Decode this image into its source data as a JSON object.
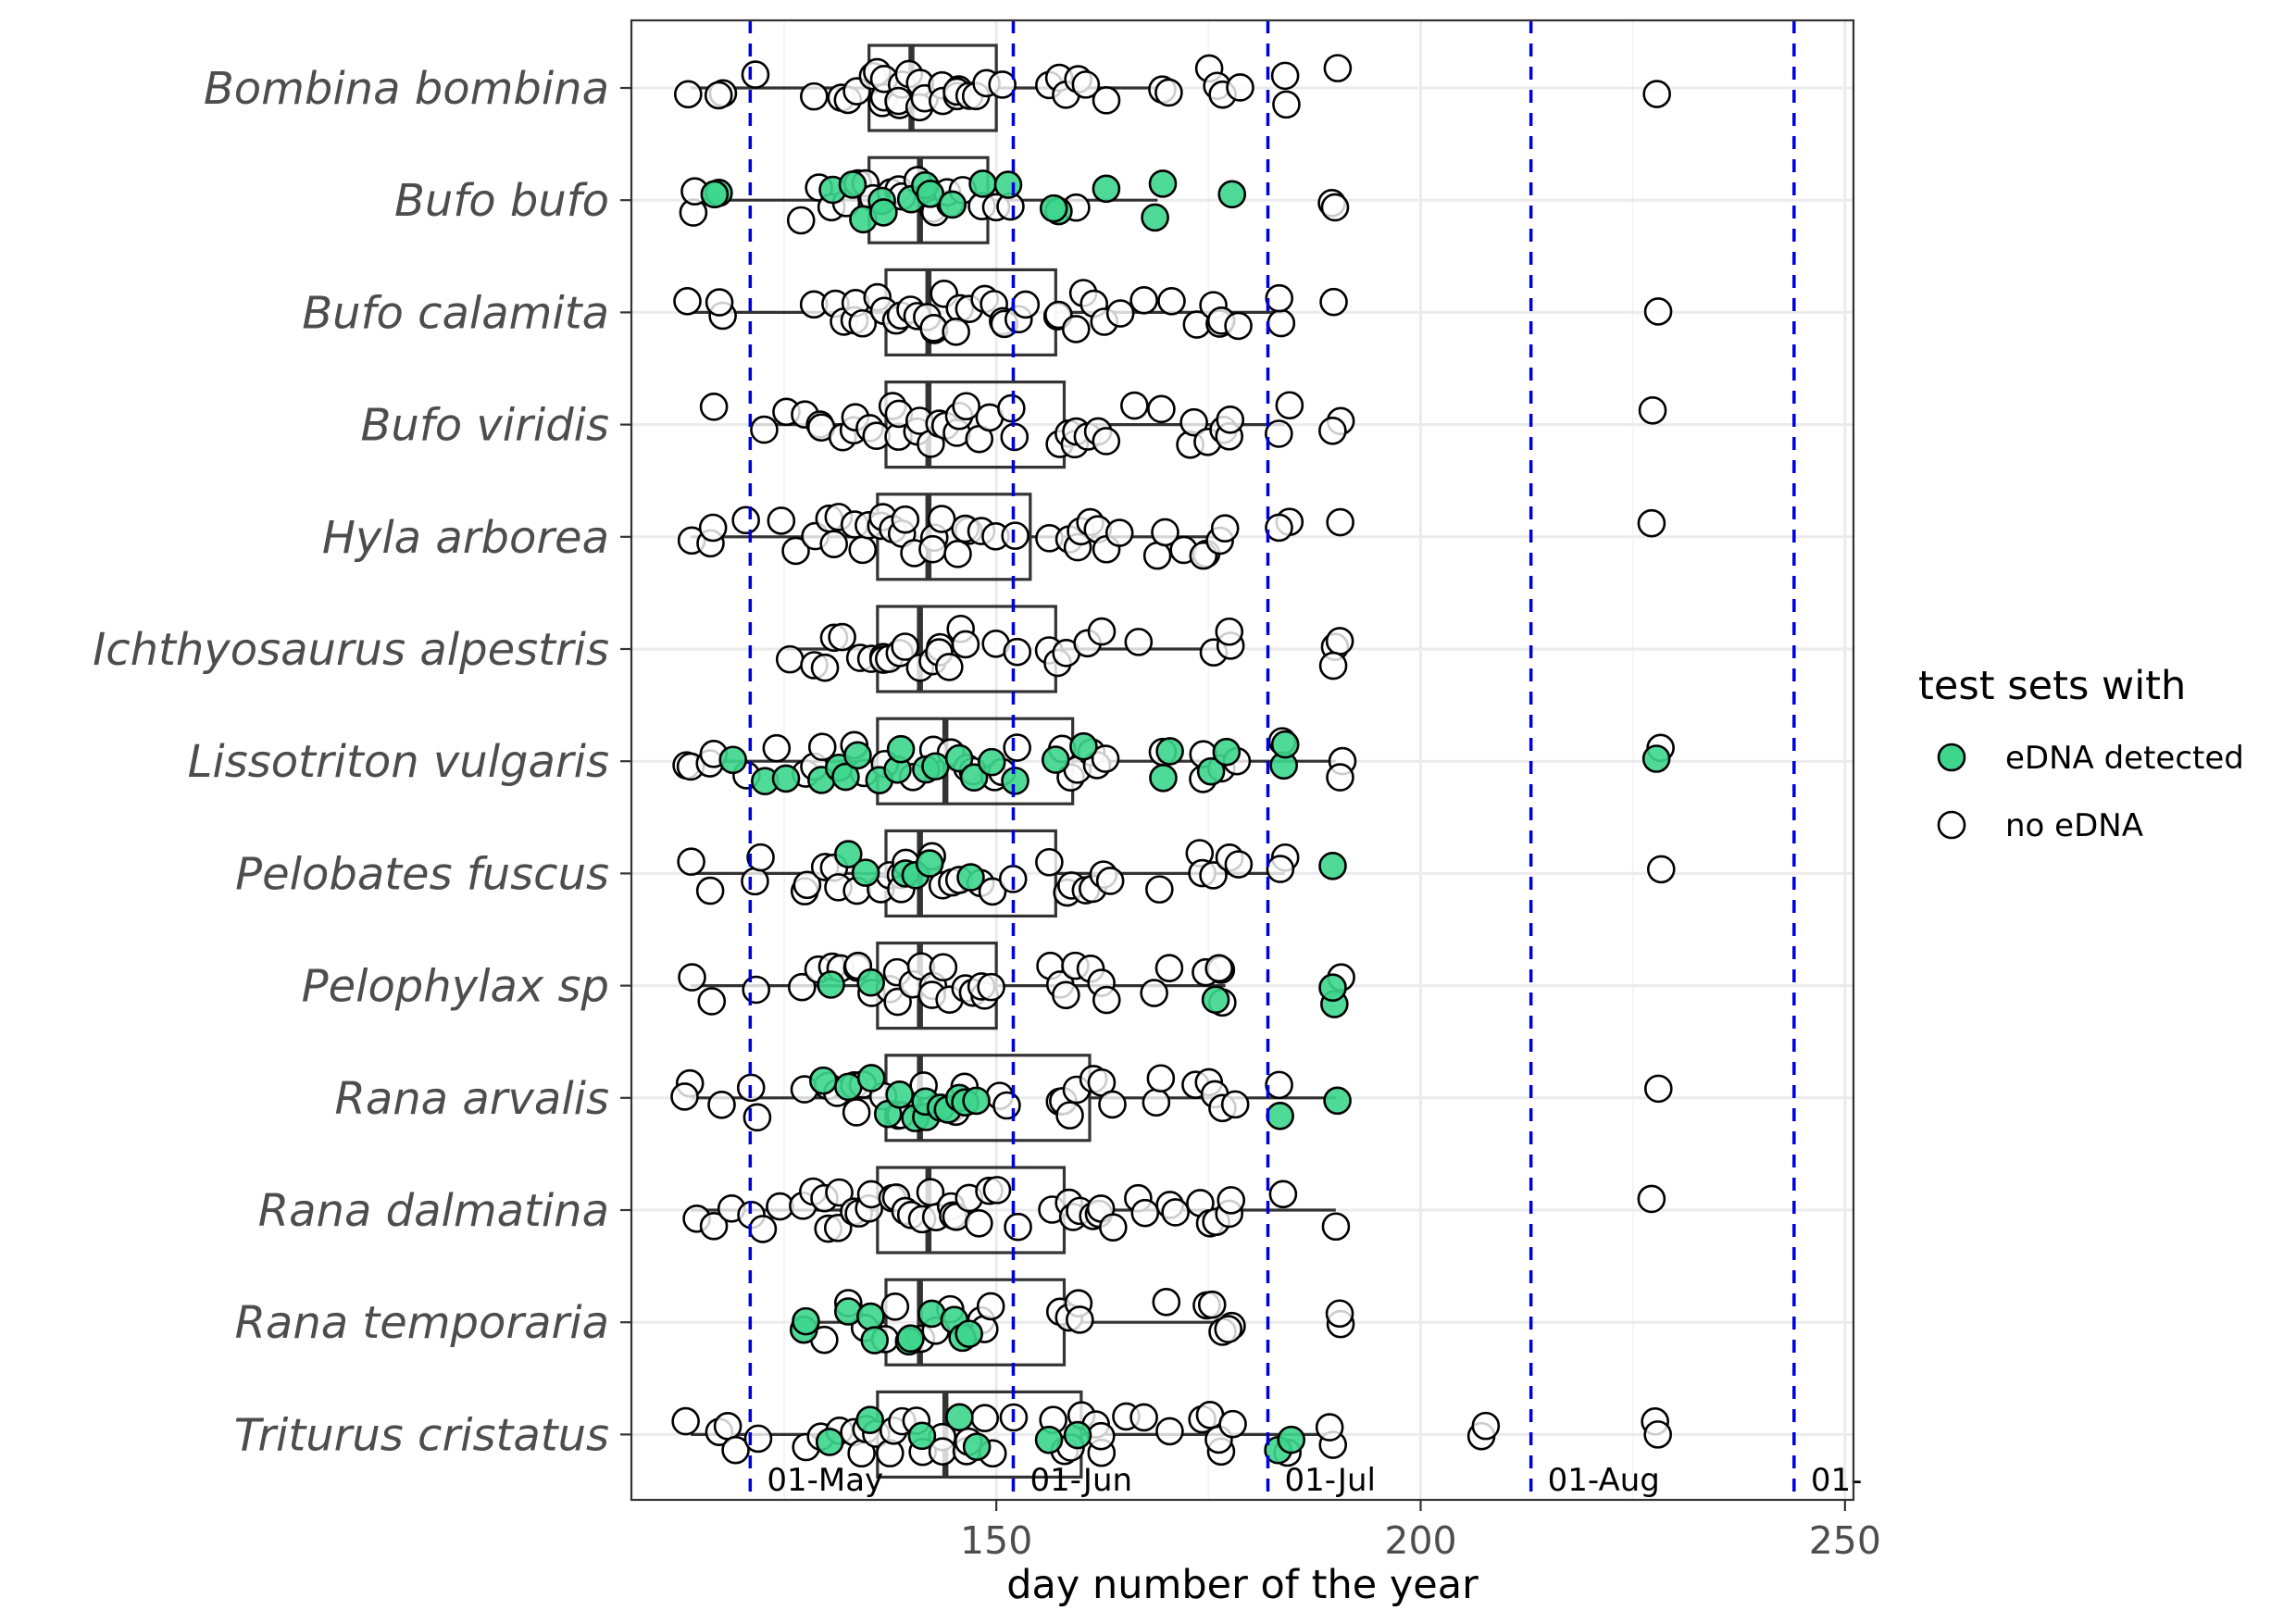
{
  "chart_data": {
    "type": "boxplot",
    "xlabel": "day number of the year",
    "ylabel": "",
    "xlim": [
      107,
      251
    ],
    "x_ticks": [
      150,
      200,
      250
    ],
    "x_minor_ticks": [
      125,
      175,
      225
    ],
    "grid": true,
    "legend": {
      "title": "test sets with",
      "placement": "right",
      "entries": [
        {
          "label": "eDNA detected",
          "color": "#3dd68c"
        },
        {
          "label": "no eDNA",
          "color": "#ffffff"
        }
      ]
    },
    "reference_lines": [
      {
        "x": 121,
        "label": "01-May"
      },
      {
        "x": 152,
        "label": "01-Jun"
      },
      {
        "x": 182,
        "label": "01-Jul"
      },
      {
        "x": 213,
        "label": "01-Aug"
      },
      {
        "x": 244,
        "label": "01-"
      }
    ],
    "categories": [
      "Bombina bombina",
      "Bufo bufo",
      "Bufo calamita",
      "Bufo viridis",
      "Hyla arborea",
      "Ichthyosaurus alpestris",
      "Lissotriton vulgaris",
      "Pelobates fuscus",
      "Pelophylax sp",
      "Rana arvalis",
      "Rana dalmatina",
      "Rana temporaria",
      "Triturus cristatus"
    ],
    "boxes": [
      {
        "whisker_low": 114,
        "q1": 135,
        "median": 140,
        "q3": 150,
        "whisker_high": 170
      },
      {
        "whisker_low": 116,
        "q1": 135,
        "median": 141,
        "q3": 149,
        "whisker_high": 169
      },
      {
        "whisker_low": 114,
        "q1": 137,
        "median": 142,
        "q3": 157,
        "whisker_high": 184
      },
      {
        "whisker_low": 121,
        "q1": 137,
        "median": 142,
        "q3": 158,
        "whisker_high": 184
      },
      {
        "whisker_low": 114,
        "q1": 136,
        "median": 142,
        "q3": 154,
        "whisker_high": 177
      },
      {
        "whisker_low": 125,
        "q1": 136,
        "median": 141,
        "q3": 157,
        "whisker_high": 177
      },
      {
        "whisker_low": 114,
        "q1": 136,
        "median": 144,
        "q3": 159,
        "whisker_high": 190
      },
      {
        "whisker_low": 114,
        "q1": 137,
        "median": 141,
        "q3": 157,
        "whisker_high": 184
      },
      {
        "whisker_low": 114,
        "q1": 136,
        "median": 141,
        "q3": 150,
        "whisker_high": 177
      },
      {
        "whisker_low": 114,
        "q1": 137,
        "median": 141,
        "q3": 161,
        "whisker_high": 190
      },
      {
        "whisker_low": 114,
        "q1": 136,
        "median": 142,
        "q3": 158,
        "whisker_high": 190
      },
      {
        "whisker_low": 127,
        "q1": 137,
        "median": 141,
        "q3": 158,
        "whisker_high": 177
      },
      {
        "whisker_low": 114,
        "q1": 136,
        "median": 144,
        "q3": 160,
        "whisker_high": 190
      }
    ],
    "points": [
      {
        "detected": [],
        "none": [
          114,
          117,
          117,
          121,
          128,
          132,
          133,
          134,
          135,
          136,
          136,
          137,
          137,
          138,
          139,
          139,
          140,
          141,
          141,
          142,
          143,
          144,
          145,
          146,
          146,
          147,
          148,
          149,
          150,
          157,
          158,
          159,
          160,
          161,
          163,
          169,
          170,
          175,
          176,
          177,
          178,
          184,
          184,
          190,
          228
        ]
      },
      {
        "detected": [
          117,
          117,
          131,
          133,
          134,
          136,
          137,
          140,
          141,
          143,
          145,
          149,
          152,
          157,
          157,
          163,
          169,
          169,
          177
        ],
        "none": [
          114,
          114,
          127,
          129,
          130,
          132,
          133,
          135,
          135,
          137,
          138,
          139,
          141,
          142,
          142,
          144,
          145,
          146,
          148,
          150,
          151,
          160,
          190,
          190
        ]
      },
      {
        "detected": [],
        "none": [
          114,
          117,
          117,
          128,
          131,
          132,
          133,
          134,
          135,
          136,
          137,
          138,
          139,
          140,
          141,
          142,
          142,
          143,
          144,
          145,
          146,
          147,
          148,
          149,
          150,
          151,
          152,
          153,
          157,
          158,
          159,
          160,
          161,
          162,
          164,
          168,
          170,
          174,
          175,
          176,
          177,
          178,
          184,
          184,
          190,
          228
        ]
      },
      {
        "detected": [],
        "none": [
          117,
          122,
          126,
          127,
          129,
          130,
          132,
          133,
          134,
          135,
          136,
          137,
          138,
          139,
          140,
          141,
          142,
          143,
          144,
          145,
          146,
          147,
          148,
          150,
          151,
          152,
          157,
          158,
          159,
          160,
          161,
          162,
          163,
          166,
          170,
          173,
          174,
          175,
          176,
          177,
          178,
          184,
          184,
          190,
          190,
          228
        ]
      },
      {
        "detected": [],
        "none": [
          114,
          117,
          117,
          121,
          125,
          127,
          128,
          130,
          131,
          132,
          133,
          134,
          135,
          136,
          137,
          138,
          139,
          140,
          141,
          142,
          143,
          144,
          145,
          146,
          147,
          148,
          150,
          152,
          157,
          158,
          159,
          160,
          161,
          162,
          163,
          164,
          169,
          170,
          172,
          174,
          175,
          176,
          177,
          184,
          184,
          190,
          228
        ]
      },
      {
        "detected": [],
        "none": [
          126,
          129,
          130,
          131,
          132,
          134,
          135,
          136,
          137,
          138,
          139,
          140,
          141,
          142,
          143,
          144,
          145,
          146,
          147,
          150,
          152,
          157,
          158,
          159,
          161,
          163,
          166,
          175,
          177,
          177,
          190,
          190,
          190
        ]
      },
      {
        "detected": [
          119,
          122,
          126,
          130,
          131,
          132,
          134,
          136,
          138,
          139,
          141,
          143,
          145,
          147,
          150,
          152,
          157,
          160,
          169,
          170,
          176,
          177,
          184,
          184,
          228
        ],
        "none": [
          114,
          114,
          117,
          117,
          121,
          124,
          127,
          128,
          129,
          133,
          135,
          137,
          140,
          142,
          144,
          146,
          148,
          149,
          151,
          153,
          158,
          159,
          160,
          161,
          162,
          163,
          170,
          174,
          175,
          176,
          178,
          184,
          190,
          190,
          228
        ]
      },
      {
        "detected": [
          133,
          135,
          139,
          141,
          142,
          147,
          190
        ],
        "none": [
          114,
          117,
          121,
          122,
          127,
          128,
          130,
          131,
          132,
          134,
          136,
          137,
          138,
          139,
          140,
          143,
          144,
          145,
          146,
          148,
          150,
          152,
          157,
          158,
          159,
          160,
          161,
          162,
          163,
          170,
          174,
          175,
          176,
          177,
          178,
          184,
          184,
          228
        ]
      },
      {
        "detected": [
          131,
          135,
          176,
          190,
          190
        ],
        "none": [
          114,
          117,
          121,
          127,
          129,
          130,
          132,
          133,
          134,
          136,
          137,
          138,
          139,
          140,
          141,
          142,
          143,
          144,
          145,
          146,
          147,
          148,
          149,
          150,
          157,
          158,
          159,
          160,
          161,
          162,
          163,
          169,
          170,
          175,
          176,
          177,
          177,
          190
        ]
      },
      {
        "detected": [
          129,
          132,
          136,
          137,
          139,
          140,
          141,
          141,
          143,
          145,
          146,
          147,
          148,
          184,
          190
        ],
        "none": [
          114,
          114,
          117,
          121,
          122,
          127,
          130,
          131,
          133,
          134,
          135,
          137,
          138,
          139,
          142,
          144,
          145,
          146,
          150,
          152,
          157,
          158,
          159,
          160,
          161,
          162,
          163,
          169,
          170,
          174,
          175,
          176,
          177,
          178,
          184,
          228
        ]
      },
      {
        "detected": [],
        "none": [
          114,
          117,
          119,
          121,
          122,
          125,
          127,
          128,
          129,
          130,
          131,
          132,
          133,
          134,
          135,
          136,
          137,
          138,
          139,
          140,
          141,
          142,
          143,
          144,
          145,
          146,
          147,
          148,
          149,
          150,
          152,
          157,
          158,
          159,
          160,
          161,
          162,
          163,
          164,
          166,
          168,
          170,
          171,
          174,
          175,
          176,
          177,
          178,
          184,
          190,
          228
        ]
      },
      {
        "detected": [
          128,
          128,
          133,
          135,
          136,
          139,
          140,
          142,
          145,
          146,
          147
        ],
        "none": [
          130,
          132,
          134,
          137,
          138,
          141,
          143,
          144,
          148,
          149,
          150,
          157,
          158,
          159,
          160,
          170,
          175,
          176,
          177,
          177,
          178,
          190,
          190
        ]
      },
      {
        "detected": [
          131,
          135,
          141,
          145,
          148,
          157,
          160,
          184,
          184
        ],
        "none": [
          114,
          117,
          118,
          120,
          122,
          127,
          130,
          132,
          133,
          134,
          135,
          136,
          137,
          138,
          139,
          140,
          142,
          143,
          144,
          146,
          147,
          149,
          150,
          152,
          157,
          158,
          159,
          160,
          161,
          162,
          163,
          166,
          168,
          170,
          174,
          175,
          176,
          177,
          178,
          184,
          190,
          190,
          207,
          207,
          228,
          228
        ]
      }
    ]
  }
}
